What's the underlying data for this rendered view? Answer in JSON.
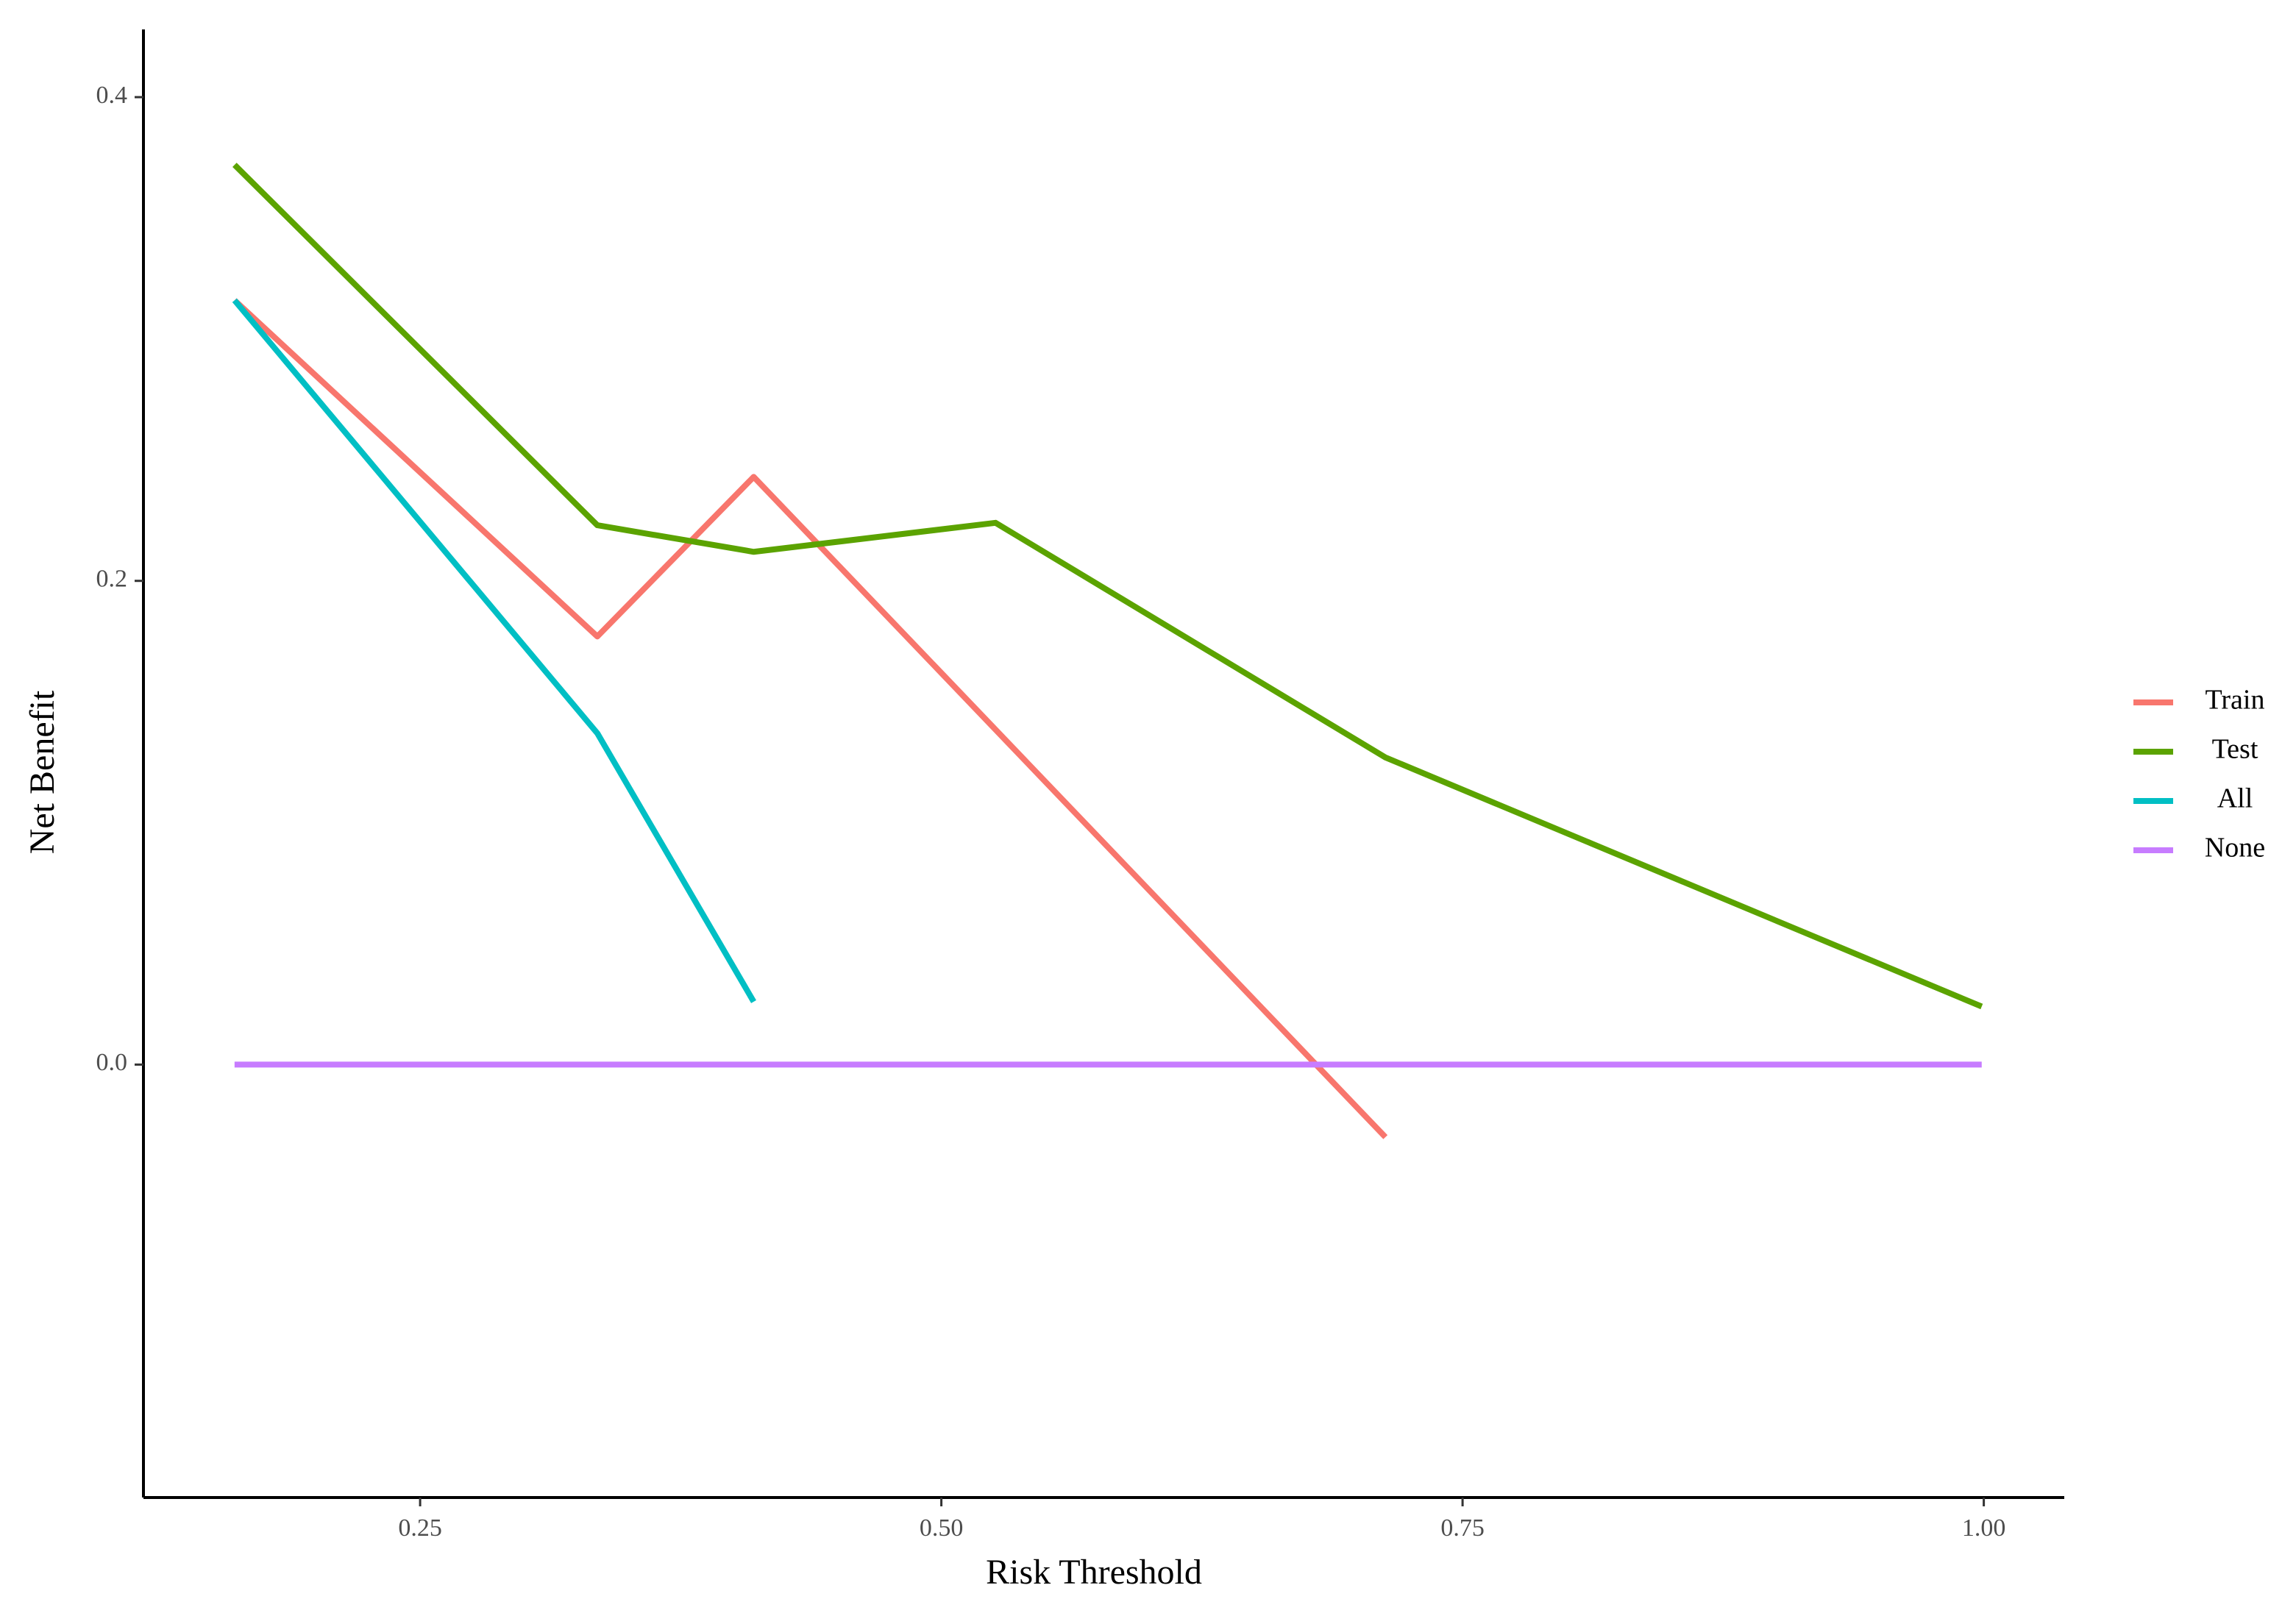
{
  "chart_data": {
    "type": "line",
    "xlabel": "Risk Threshold",
    "ylabel": "Net Benefit",
    "xlim": [
      0.1173,
      1.0386
    ],
    "ylim": [
      -0.179,
      0.428
    ],
    "xticks": [
      0.25,
      {
        "value": 0.5,
        "label": "0.50"
      },
      0.75,
      {
        "value": 1.0,
        "label": "1.00"
      }
    ],
    "yticks": [
      {
        "value": 0,
        "label": "0.0"
      },
      0.2,
      0.4
    ],
    "grid": false,
    "legend": "right",
    "series": [
      {
        "name": "Train",
        "color": "#F8766D",
        "x": [
          0.161,
          0.335,
          0.41,
          0.713
        ],
        "values": [
          0.316,
          0.177,
          0.243,
          -0.03
        ]
      },
      {
        "name": "Test",
        "color": "#5BA300",
        "x": [
          0.161,
          0.335,
          0.41,
          0.526,
          0.713,
          0.999
        ],
        "values": [
          0.372,
          0.223,
          0.212,
          0.224,
          0.127,
          0.024
        ]
      },
      {
        "name": "All",
        "color": "#00BFC4",
        "x": [
          0.161,
          0.335,
          0.41
        ],
        "values": [
          0.316,
          0.137,
          0.026
        ]
      },
      {
        "name": "None",
        "color": "#C77CFF",
        "x": [
          0.161,
          0.999
        ],
        "values": [
          0,
          0
        ]
      }
    ]
  }
}
